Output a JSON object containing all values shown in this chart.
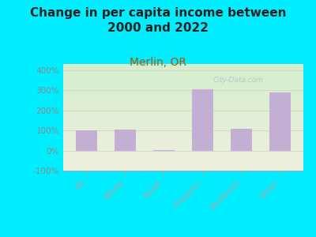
{
  "title": "Change in per capita income between\n2000 and 2022",
  "subtitle": "Merlin, OR",
  "categories": [
    "All",
    "White",
    "Asian",
    "Hispanic",
    "Multirace",
    "Other"
  ],
  "values": [
    100,
    105,
    2,
    305,
    110,
    290
  ],
  "bar_color": "#c4afd4",
  "background_outer": "#00eeff",
  "background_plot_top": "#d4eecc",
  "background_plot_bottom": "#f0f0e0",
  "title_color": "#222222",
  "subtitle_color": "#b85000",
  "tick_label_color": "#888888",
  "ylim": [
    -100,
    430
  ],
  "yticks": [
    -100,
    0,
    100,
    200,
    300,
    400
  ],
  "watermark": "City-Data.com",
  "title_fontsize": 11,
  "subtitle_fontsize": 10
}
